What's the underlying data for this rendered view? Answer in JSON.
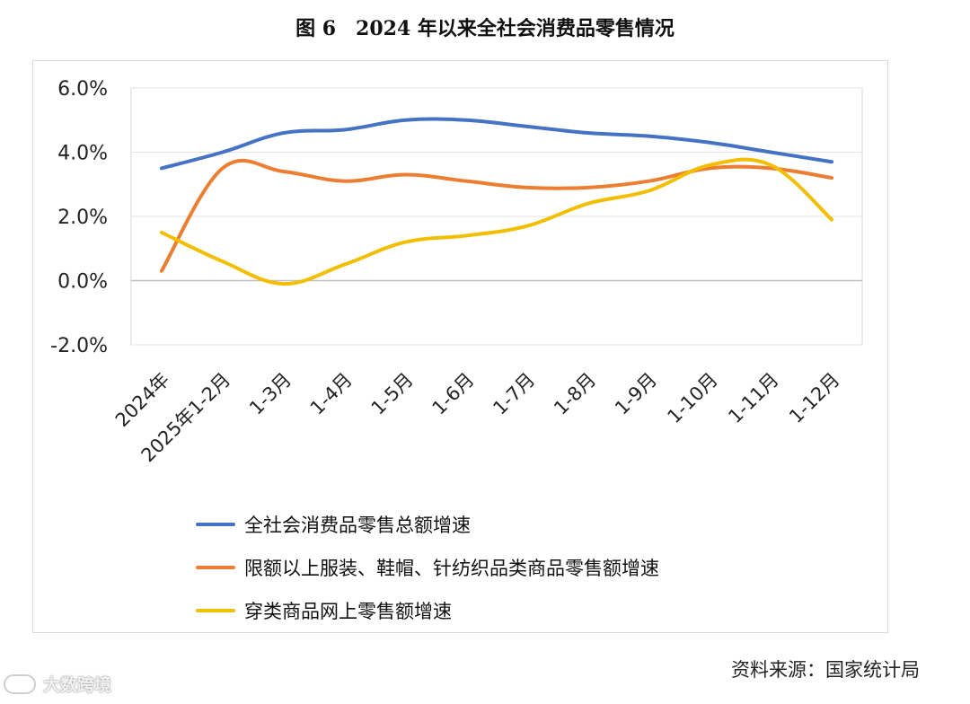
{
  "figure_title": {
    "number": "图 6",
    "text": "2024 年以来全社会消费品零售情况"
  },
  "source": "资料来源：国家统计局",
  "watermark": "大数跨境",
  "chart_data": {
    "type": "line",
    "categories": [
      "2024年",
      "2025年1-2月",
      "1-3月",
      "1-4月",
      "1-5月",
      "1-6月",
      "1-7月",
      "1-8月",
      "1-9月",
      "1-10月",
      "1-11月",
      "1-12月"
    ],
    "ylim": [
      -2.0,
      6.0
    ],
    "yticks": [
      -2.0,
      0.0,
      2.0,
      4.0,
      6.0
    ],
    "ytick_labels": [
      "-2.0%",
      "0.0%",
      "2.0%",
      "4.0%",
      "6.0%"
    ],
    "grid": true,
    "legend_position": "bottom",
    "series": [
      {
        "name": "全社会消费品零售总额增速",
        "color": "#4472C4",
        "values": [
          3.5,
          4.0,
          4.6,
          4.7,
          5.0,
          5.0,
          4.8,
          4.6,
          4.5,
          4.3,
          4.0,
          3.7
        ]
      },
      {
        "name": "限额以上服装、鞋帽、针纺织品类商品零售额增速",
        "color": "#ED7D31",
        "values": [
          0.3,
          3.5,
          3.4,
          3.1,
          3.3,
          3.1,
          2.9,
          2.9,
          3.1,
          3.5,
          3.5,
          3.2
        ]
      },
      {
        "name": "穿类商品网上零售额增速",
        "color": "#F2BE00",
        "values": [
          1.5,
          0.6,
          -0.1,
          0.5,
          1.2,
          1.4,
          1.7,
          2.4,
          2.8,
          3.6,
          3.6,
          1.9
        ]
      }
    ]
  }
}
